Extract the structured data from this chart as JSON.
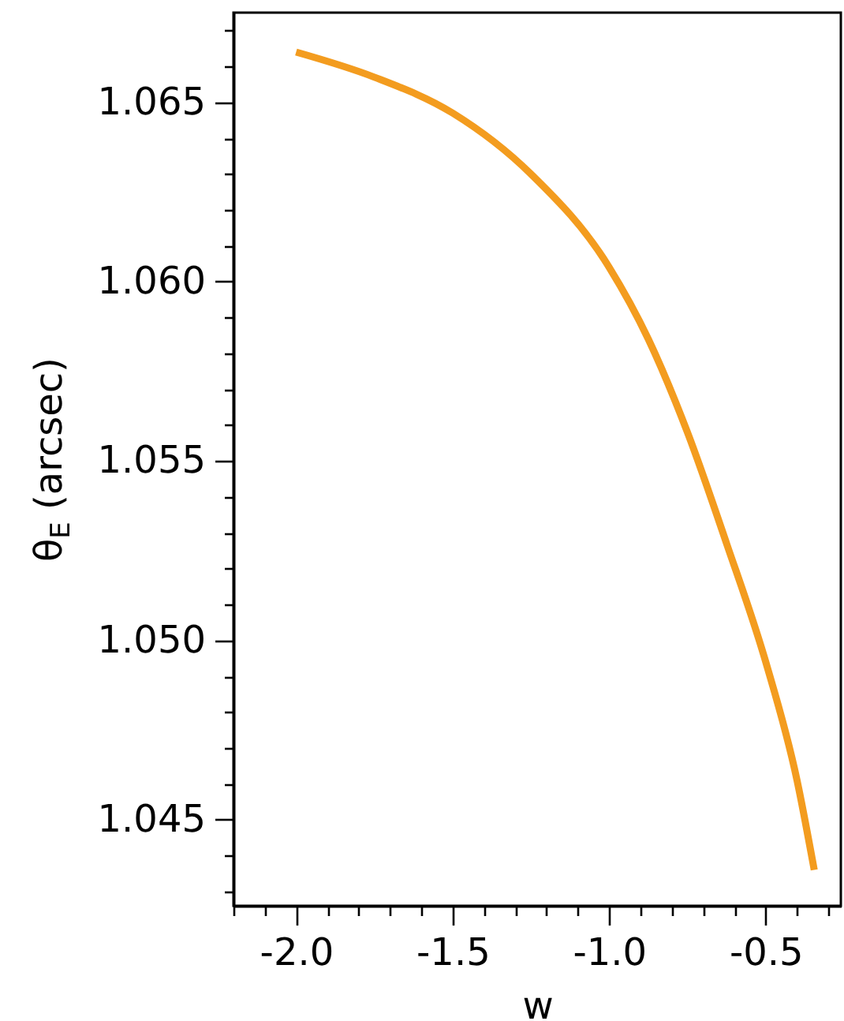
{
  "chart_data": {
    "type": "line",
    "xlabel": "w",
    "ylabel": "θ$_{E}$ (arcsec)",
    "x": [
      -2.0,
      -1.75,
      -1.5,
      -1.25,
      -1.0,
      -0.875,
      -0.75,
      -0.625,
      -0.5,
      -0.4,
      -0.345
    ],
    "series": [
      {
        "color": "#f39c1f",
        "values": [
          1.0664,
          1.0657,
          1.0647,
          1.063,
          1.0604,
          1.0584,
          1.0558,
          1.0527,
          1.0494,
          1.0461,
          1.0436
        ]
      }
    ],
    "xlim": [
      -2.2,
      -0.26
    ],
    "ylim": [
      1.0426,
      1.0675
    ],
    "xticks": [
      {
        "value": -2.2,
        "label": null
      },
      {
        "value": -2.1,
        "label": null
      },
      {
        "value": -2.0,
        "label": "-2.0"
      },
      {
        "value": -1.9,
        "label": null
      },
      {
        "value": -1.8,
        "label": null
      },
      {
        "value": -1.7,
        "label": null
      },
      {
        "value": -1.6,
        "label": null
      },
      {
        "value": -1.5,
        "label": "-1.5"
      },
      {
        "value": -1.4,
        "label": null
      },
      {
        "value": -1.3,
        "label": null
      },
      {
        "value": -1.2,
        "label": null
      },
      {
        "value": -1.1,
        "label": null
      },
      {
        "value": -1.0,
        "label": "-1.0"
      },
      {
        "value": -0.9,
        "label": null
      },
      {
        "value": -0.8,
        "label": null
      },
      {
        "value": -0.7,
        "label": null
      },
      {
        "value": -0.6,
        "label": null
      },
      {
        "value": -0.5,
        "label": "-0.5"
      },
      {
        "value": -0.4,
        "label": null
      },
      {
        "value": -0.3,
        "label": null
      }
    ],
    "yticks": [
      {
        "value": 1.043,
        "label": null
      },
      {
        "value": 1.044,
        "label": null
      },
      1.045,
      {
        "value": 1.046,
        "label": null
      },
      {
        "value": 1.047,
        "label": null
      },
      {
        "value": 1.048,
        "label": null
      },
      {
        "value": 1.049,
        "label": null
      },
      {
        "value": 1.05,
        "label": "1.050"
      },
      {
        "value": 1.051,
        "label": null
      },
      {
        "value": 1.052,
        "label": null
      },
      {
        "value": 1.053,
        "label": null
      },
      {
        "value": 1.054,
        "label": null
      },
      1.055,
      {
        "value": 1.056,
        "label": null
      },
      {
        "value": 1.057,
        "label": null
      },
      {
        "value": 1.058,
        "label": null
      },
      {
        "value": 1.059,
        "label": null
      },
      {
        "value": 1.06,
        "label": "1.060"
      },
      {
        "value": 1.061,
        "label": null
      },
      {
        "value": 1.062,
        "label": null
      },
      {
        "value": 1.063,
        "label": null
      },
      {
        "value": 1.064,
        "label": null
      },
      1.065,
      {
        "value": 1.066,
        "label": null
      },
      {
        "value": 1.067,
        "label": null
      }
    ],
    "grid": false,
    "marker": "none",
    "line_style": "solid"
  }
}
